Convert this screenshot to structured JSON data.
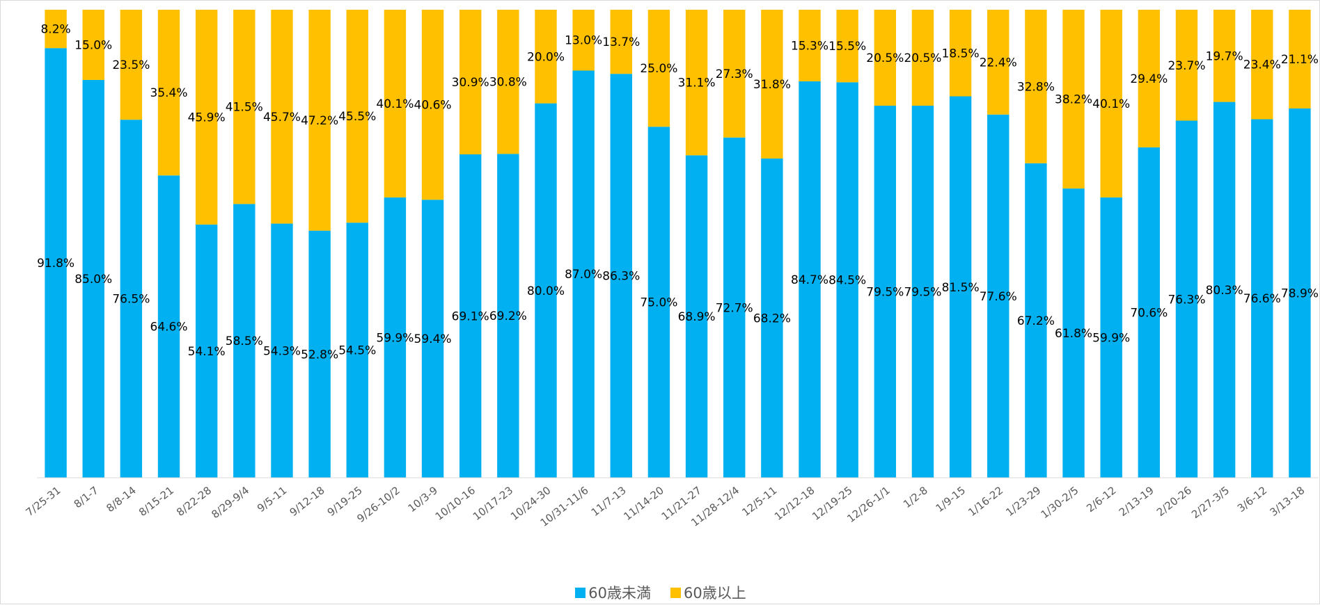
{
  "chart_data": {
    "type": "bar",
    "stacked": true,
    "normalized": true,
    "categories": [
      "7/25-31",
      "8/1-7",
      "8/8-14",
      "8/15-21",
      "8/22-28",
      "8/29-9/4",
      "9/5-11",
      "9/12-18",
      "9/19-25",
      "9/26-10/2",
      "10/3-9",
      "10/10-16",
      "10/17-23",
      "10/24-30",
      "10/31-11/6",
      "11/7-13",
      "11/14-20",
      "11/21-27",
      "11/28-12/4",
      "12/5-11",
      "12/12-18",
      "12/19-25",
      "12/26-1/1",
      "1/2-8",
      "1/9-15",
      "1/16-22",
      "1/23-29",
      "1/30-2/5",
      "2/6-12",
      "2/13-19",
      "2/20-26",
      "2/27-3/5",
      "3/6-12",
      "3/13-18"
    ],
    "series": [
      {
        "name": "60歳未満",
        "color": "#00B0F0",
        "values": [
          91.8,
          85.0,
          76.5,
          64.6,
          54.1,
          58.5,
          54.3,
          52.8,
          54.5,
          59.9,
          59.4,
          69.1,
          69.2,
          80.0,
          87.0,
          86.3,
          75.0,
          68.9,
          72.7,
          68.2,
          84.7,
          84.5,
          79.5,
          79.5,
          81.5,
          77.6,
          67.2,
          61.8,
          59.9,
          70.6,
          76.3,
          80.3,
          76.6,
          78.9
        ],
        "labels": [
          "91.8%",
          "85.0%",
          "76.5%",
          "64.6%",
          "54.1%",
          "58.5%",
          "54.3%",
          "52.8%",
          "54.5%",
          "59.9%",
          "59.4%",
          "69.1%",
          "69.2%",
          "80.0%",
          "87.0%",
          "86.3%",
          "75.0%",
          "68.9%",
          "72.7%",
          "68.2%",
          "84.7%",
          "84.5%",
          "79.5%",
          "79.5%",
          "81.5%",
          "77.6%",
          "67.2%",
          "61.8%",
          "59.9%",
          "70.6%",
          "76.3%",
          "80.3%",
          "76.6%",
          "78.9%"
        ]
      },
      {
        "name": "60歳以上",
        "color": "#FFC000",
        "values": [
          8.2,
          15.0,
          23.5,
          35.4,
          45.9,
          41.5,
          45.7,
          47.2,
          45.5,
          40.1,
          40.6,
          30.9,
          30.8,
          20.0,
          13.0,
          13.7,
          25.0,
          31.1,
          27.3,
          31.8,
          15.3,
          15.5,
          20.5,
          20.5,
          18.5,
          22.4,
          32.8,
          38.2,
          40.1,
          29.4,
          23.7,
          19.7,
          23.4,
          21.1
        ],
        "labels": [
          "8.2%",
          "15.0%",
          "23.5%",
          "35.4%",
          "45.9%",
          "41.5%",
          "45.7%",
          "47.2%",
          "45.5%",
          "40.1%",
          "40.6%",
          "30.9%",
          "30.8%",
          "20.0%",
          "13.0%",
          "13.7%",
          "25.0%",
          "31.1%",
          "27.3%",
          "31.8%",
          "15.3%",
          "15.5%",
          "20.5%",
          "20.5%",
          "18.5%",
          "22.4%",
          "32.8%",
          "38.2%",
          "40.1%",
          "29.4%",
          "23.7%",
          "19.7%",
          "23.4%",
          "21.1%"
        ]
      }
    ],
    "ylim": [
      0,
      100
    ],
    "grid": false,
    "legend_position": "bottom"
  },
  "legend": {
    "items": [
      {
        "label": "60歳未満",
        "color": "#00B0F0"
      },
      {
        "label": "60歳以上",
        "color": "#FFC000"
      }
    ]
  }
}
